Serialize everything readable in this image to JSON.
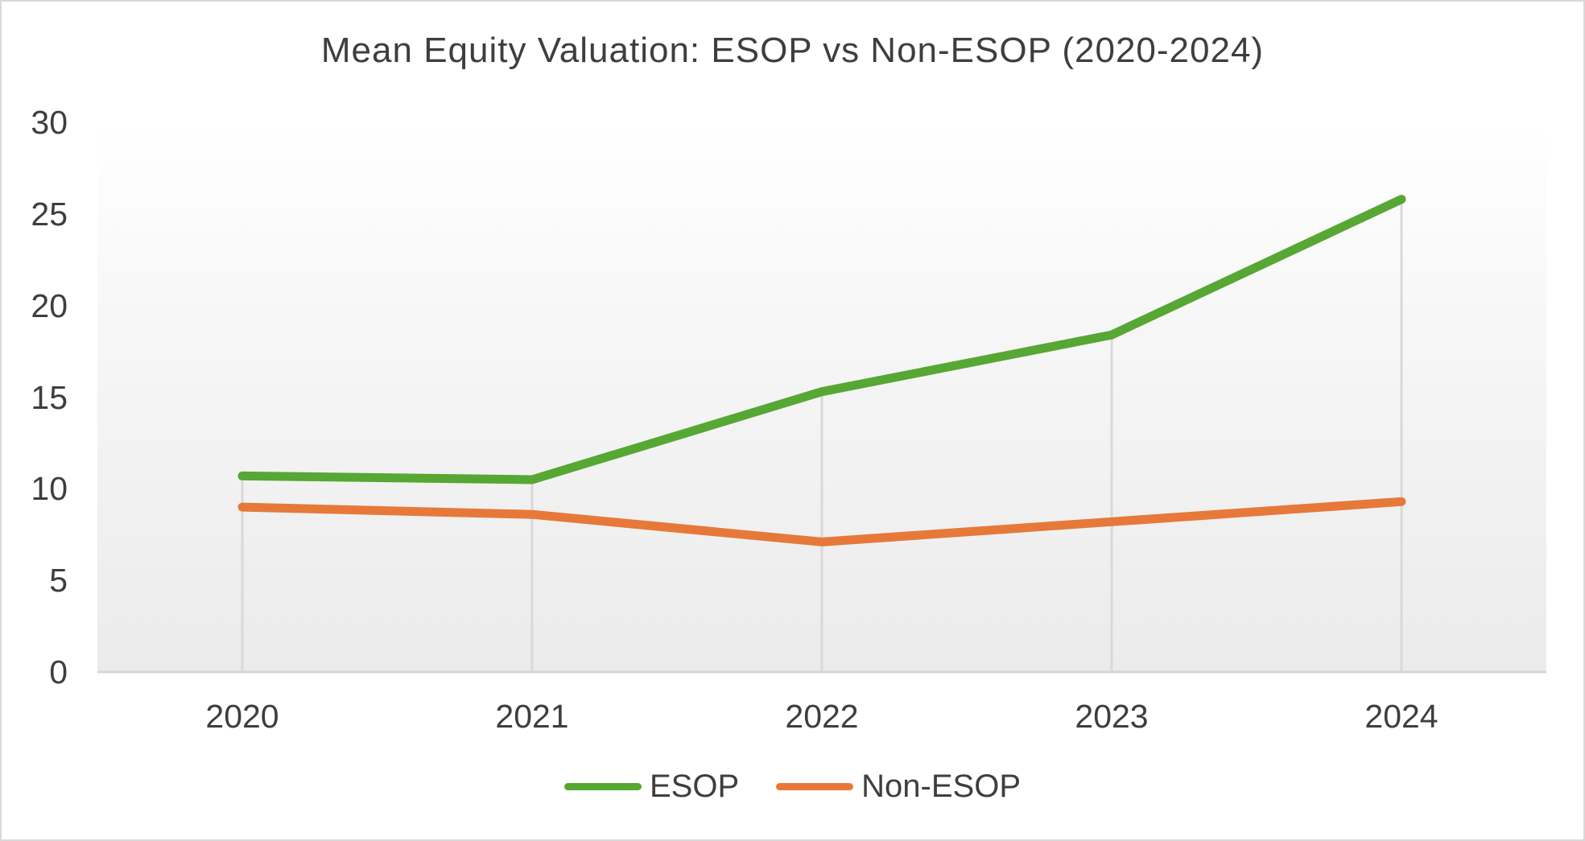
{
  "chart_data": {
    "type": "line",
    "title": "Mean Equity Valuation: ESOP vs Non-ESOP (2020-2024)",
    "categories": [
      "2020",
      "2021",
      "2022",
      "2023",
      "2024"
    ],
    "series": [
      {
        "name": "ESOP",
        "color": "#56a733",
        "values": [
          10.7,
          10.5,
          15.3,
          18.4,
          25.8
        ]
      },
      {
        "name": "Non-ESOP",
        "color": "#e6793a",
        "values": [
          9.0,
          8.6,
          7.1,
          8.2,
          9.3
        ]
      }
    ],
    "xlabel": "",
    "ylabel": "",
    "ylim": [
      0,
      30
    ],
    "ytick_interval": 5,
    "ytick_labels": [
      "0",
      "5",
      "10",
      "15",
      "20",
      "25",
      "30"
    ],
    "grid": "vertical-droplines",
    "legend_position": "bottom-center",
    "colors": {
      "axis_line": "#d6d6d6",
      "drop_line": "#d9d9d9",
      "text": "#3e3e3e",
      "plot_bg_top": "#ffffff",
      "plot_bg_bottom": "#ebebeb"
    }
  }
}
